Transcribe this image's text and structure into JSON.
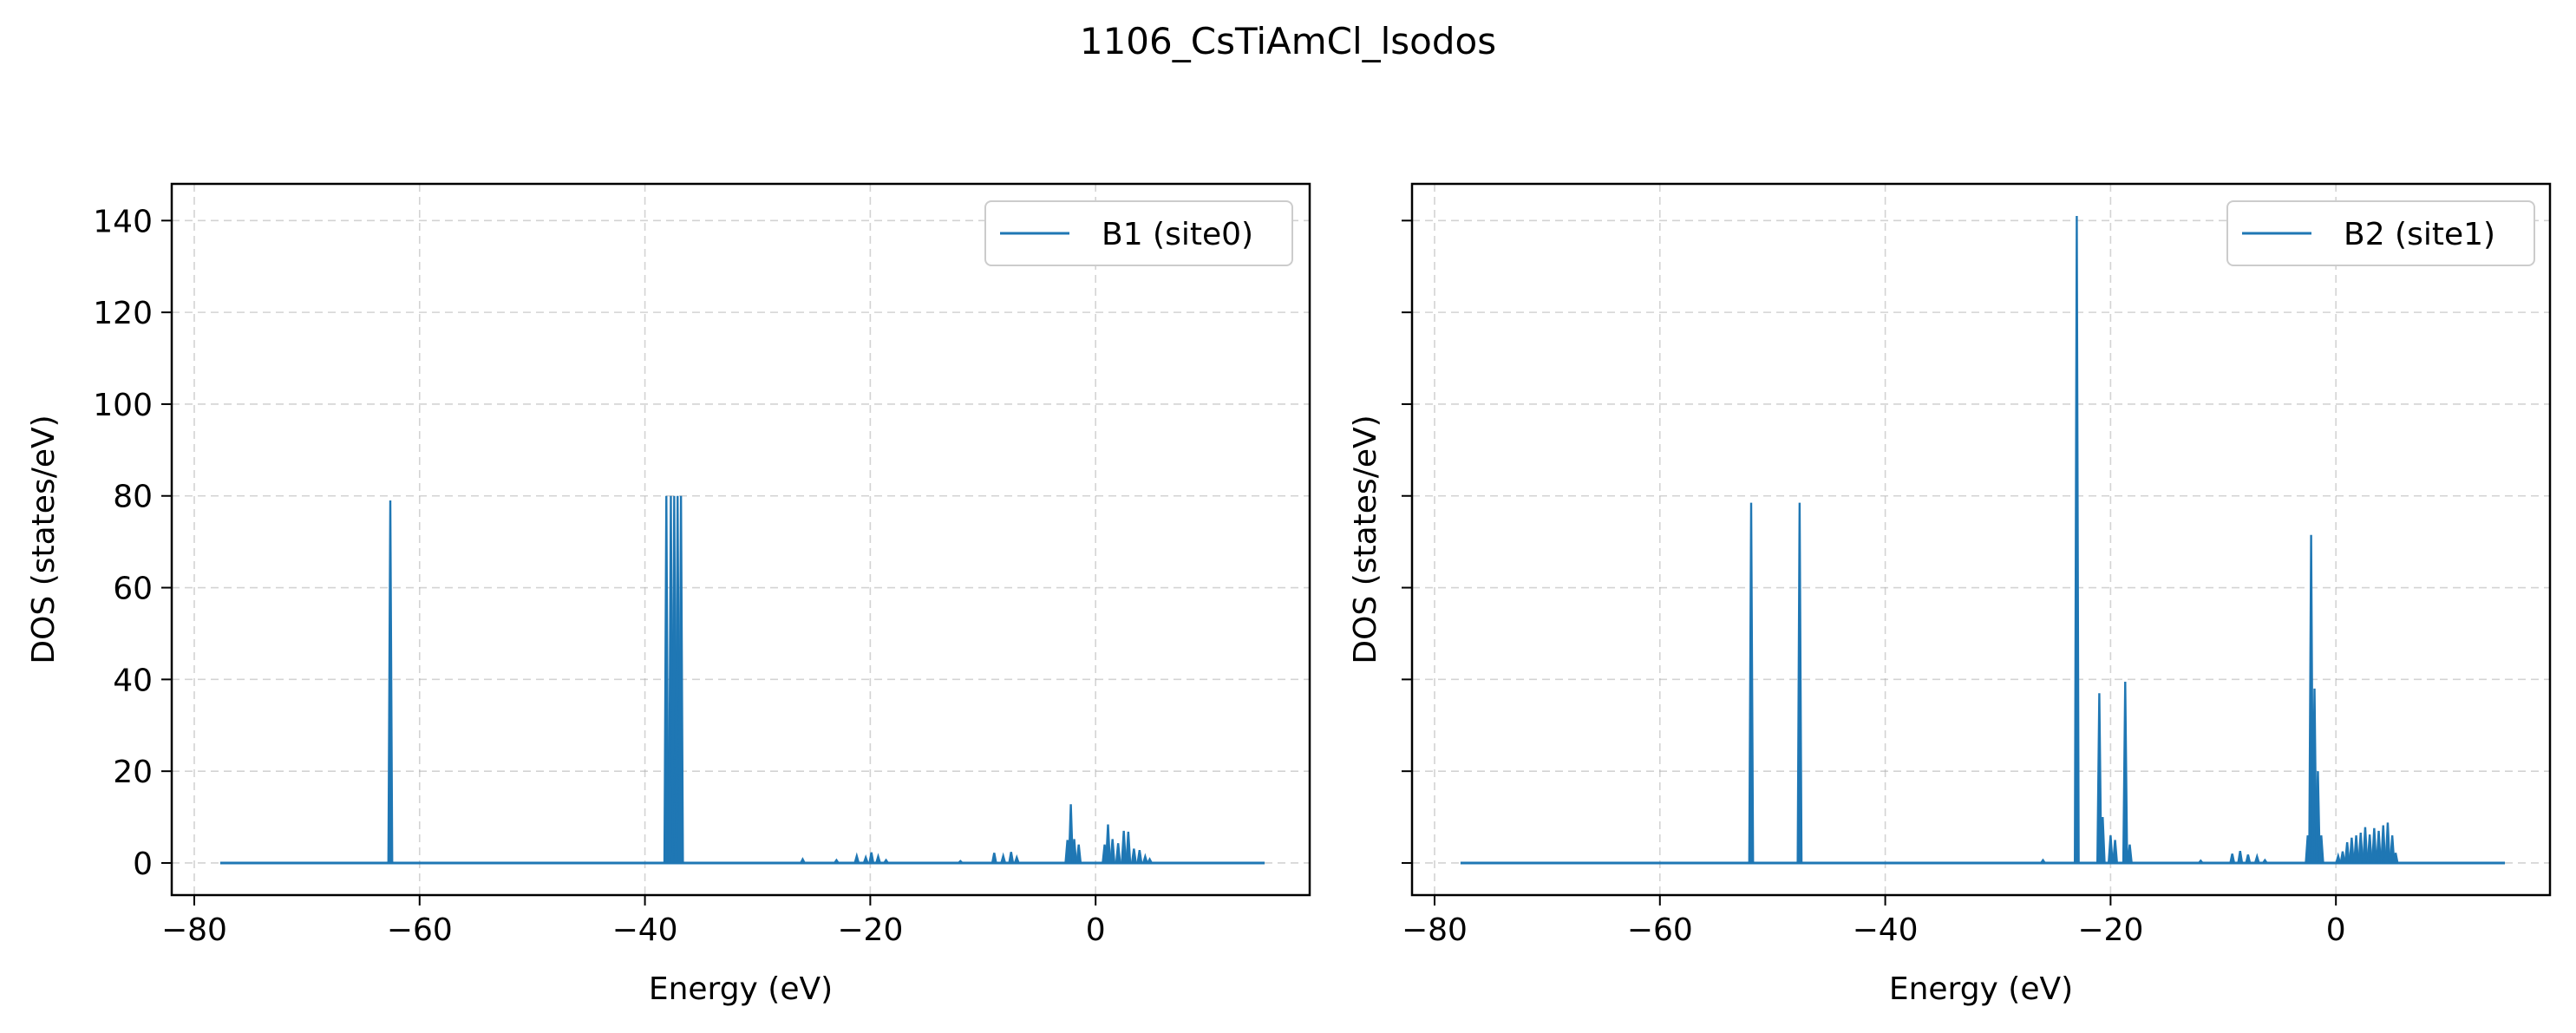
{
  "figure_title": "1106_CsTiAmCl_lsodos",
  "colors": {
    "series": "#1f77b4",
    "grid": "#b0b0b0",
    "axes": "#000000"
  },
  "chart_data": [
    {
      "type": "line",
      "title": "",
      "xlabel": "Energy (eV)",
      "ylabel": "DOS (states/eV)",
      "xlim": [
        -82,
        19
      ],
      "ylim": [
        -7,
        148
      ],
      "xticks": [
        -80,
        -60,
        -40,
        -20,
        0
      ],
      "xtick_labels": [
        "−80",
        "−60",
        "−40",
        "−20",
        "0"
      ],
      "yticks": [
        0,
        20,
        40,
        60,
        80,
        100,
        120,
        140
      ],
      "ytick_labels": [
        "0",
        "20",
        "40",
        "60",
        "80",
        "100",
        "120",
        "140"
      ],
      "grid": true,
      "legend_position": "upper right",
      "series": [
        {
          "name": "B1 (site0)",
          "x_range": [
            -77.7,
            15.0
          ],
          "baseline": 0,
          "peaks": [
            [
              -62.6,
              79
            ],
            [
              -38.1,
              80
            ],
            [
              -37.7,
              80
            ],
            [
              -37.4,
              80
            ],
            [
              -37.1,
              80
            ],
            [
              -36.8,
              80
            ],
            [
              -26.0,
              0.8
            ],
            [
              -23.0,
              0.6
            ],
            [
              -21.2,
              1.5
            ],
            [
              -20.4,
              1.2
            ],
            [
              -19.9,
              2.3
            ],
            [
              -19.3,
              1.4
            ],
            [
              -18.6,
              0.6
            ],
            [
              -12.0,
              0.4
            ],
            [
              -9.0,
              2.2
            ],
            [
              -8.2,
              1.5
            ],
            [
              -7.5,
              2.4
            ],
            [
              -7.0,
              1.2
            ],
            [
              -2.5,
              5.0
            ],
            [
              -2.2,
              12.8
            ],
            [
              -1.9,
              5.2
            ],
            [
              -1.5,
              4.0
            ],
            [
              0.8,
              4.0
            ],
            [
              1.1,
              8.4
            ],
            [
              1.5,
              5.2
            ],
            [
              2.0,
              4.3
            ],
            [
              2.5,
              7.0
            ],
            [
              2.9,
              6.8
            ],
            [
              3.4,
              3.1
            ],
            [
              3.9,
              2.8
            ],
            [
              4.4,
              1.4
            ],
            [
              4.8,
              0.8
            ]
          ]
        }
      ]
    },
    {
      "type": "line",
      "title": "",
      "xlabel": "Energy (eV)",
      "ylabel": "DOS (states/eV)",
      "xlim": [
        -82,
        19
      ],
      "ylim": [
        -7,
        148
      ],
      "xticks": [
        -80,
        -60,
        -40,
        -20,
        0
      ],
      "xtick_labels": [
        "−80",
        "−60",
        "−40",
        "−20",
        "0"
      ],
      "yticks": [
        0,
        20,
        40,
        60,
        80,
        100,
        120,
        140
      ],
      "ytick_labels": [],
      "grid": true,
      "legend_position": "upper right",
      "series": [
        {
          "name": "B2 (site1)",
          "x_range": [
            -77.7,
            15.0
          ],
          "baseline": 0,
          "peaks": [
            [
              -51.9,
              78.5
            ],
            [
              -47.6,
              78.5
            ],
            [
              -26.0,
              0.6
            ],
            [
              -23.0,
              141
            ],
            [
              -21.0,
              37
            ],
            [
              -20.7,
              10
            ],
            [
              -20.0,
              6
            ],
            [
              -19.6,
              5
            ],
            [
              -18.7,
              39.5
            ],
            [
              -18.3,
              4
            ],
            [
              -12.0,
              0.5
            ],
            [
              -9.2,
              2.0
            ],
            [
              -8.5,
              2.6
            ],
            [
              -7.8,
              1.8
            ],
            [
              -7.0,
              1.4
            ],
            [
              -6.3,
              0.6
            ],
            [
              -2.5,
              6
            ],
            [
              -2.2,
              71.5
            ],
            [
              -1.9,
              38
            ],
            [
              -1.6,
              20
            ],
            [
              -1.3,
              6
            ],
            [
              0.2,
              1.5
            ],
            [
              0.6,
              2.5
            ],
            [
              1.0,
              4.5
            ],
            [
              1.4,
              5.5
            ],
            [
              1.8,
              6.0
            ],
            [
              2.2,
              6.6
            ],
            [
              2.6,
              7.8
            ],
            [
              3.0,
              6.2
            ],
            [
              3.4,
              7.6
            ],
            [
              3.8,
              7.0
            ],
            [
              4.2,
              8.2
            ],
            [
              4.6,
              8.8
            ],
            [
              5.0,
              6.0
            ],
            [
              5.3,
              2.2
            ]
          ]
        }
      ]
    }
  ]
}
